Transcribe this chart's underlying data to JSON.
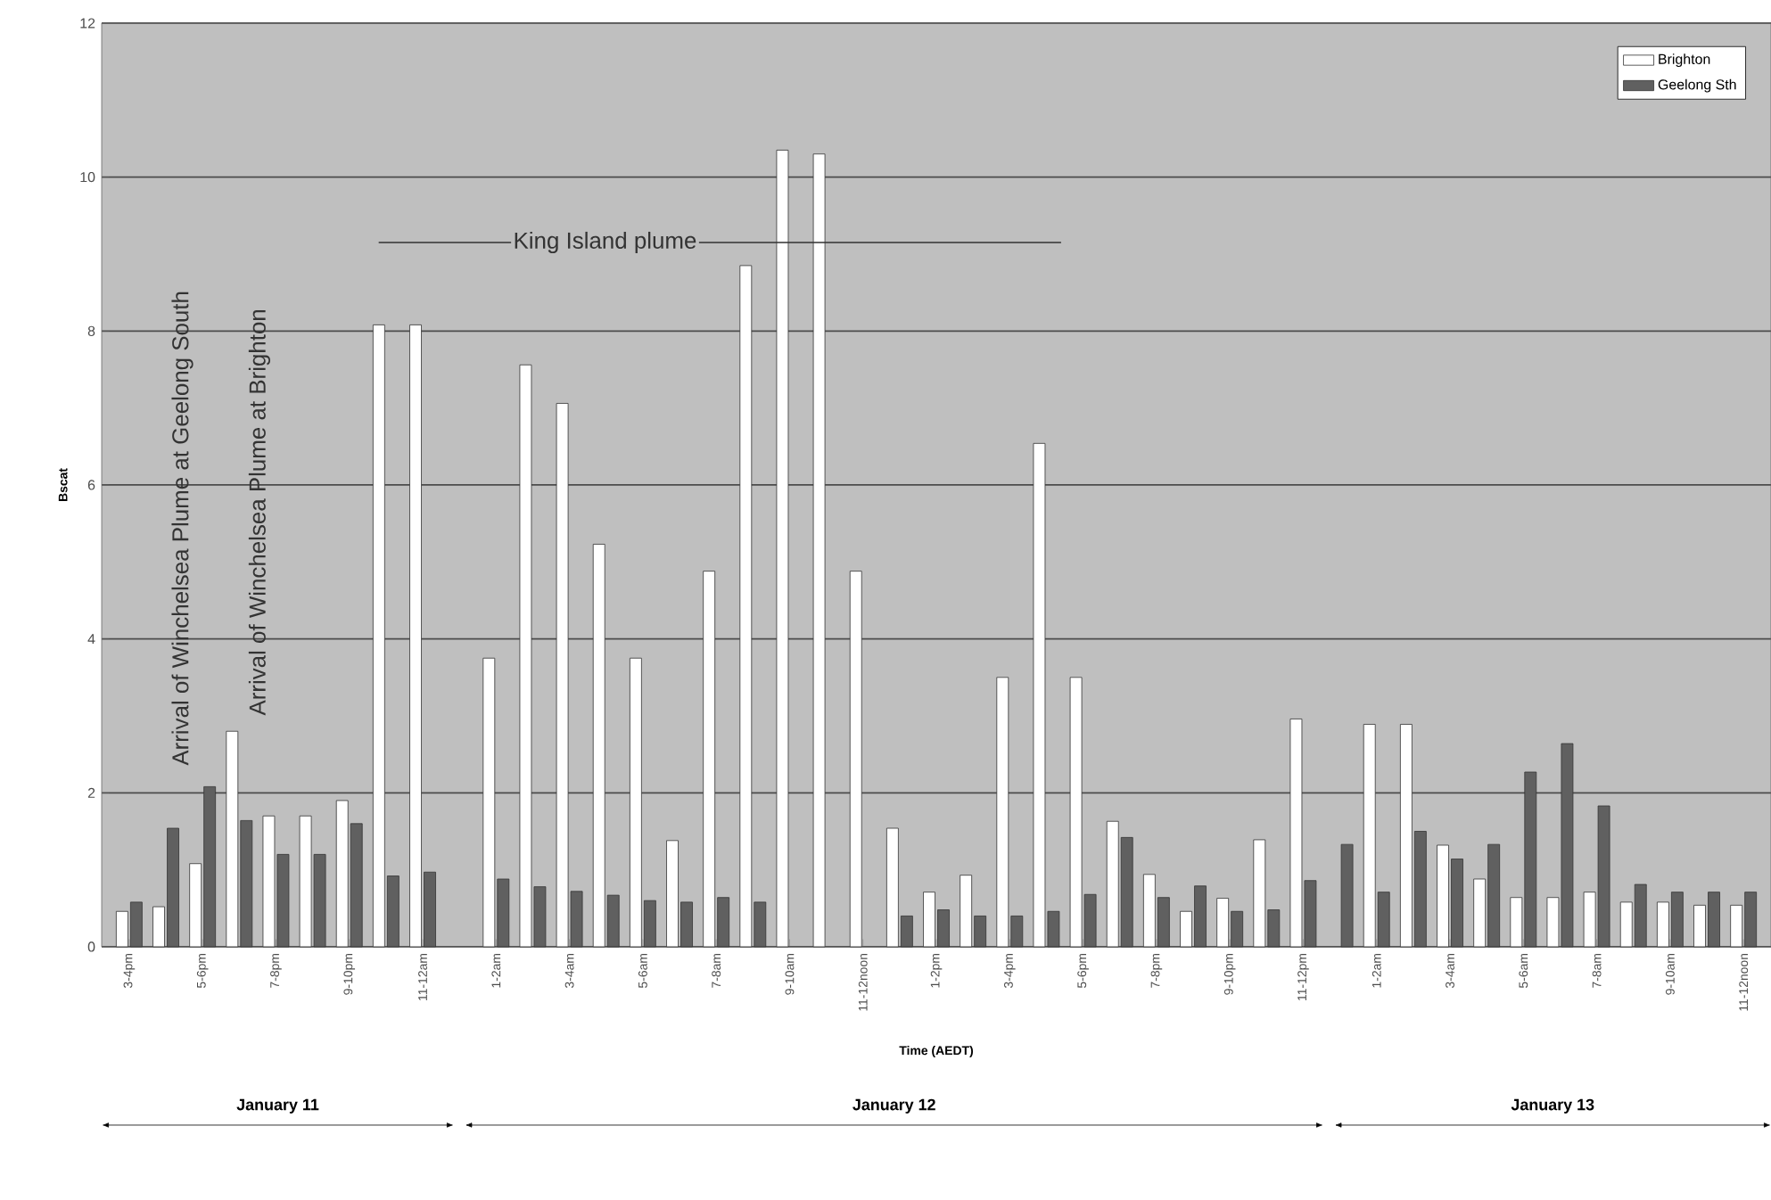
{
  "chart_data": {
    "type": "bar",
    "xlabel": "Time (AEDT)",
    "ylabel": "Bscat",
    "categories": [
      "3-4pm",
      null,
      "5-6pm",
      null,
      "7-8pm",
      null,
      "9-10pm",
      null,
      "11-12am",
      null,
      "1-2am",
      null,
      "3-4am",
      null,
      "5-6am",
      null,
      "7-8am",
      null,
      "9-10am",
      null,
      "11-12noon",
      null,
      "1-2pm",
      null,
      "3-4pm",
      null,
      "5-6pm",
      null,
      "7-8pm",
      null,
      "9-10pm",
      null,
      "11-12pm",
      null,
      "1-2am",
      null,
      "3-4am",
      null,
      "5-6am",
      null,
      "7-8am",
      null,
      "9-10am",
      null,
      "11-12noon"
    ],
    "series": [
      {
        "name": "Brighton",
        "color": "#ffffff",
        "values": [
          0.46,
          0.52,
          1.08,
          2.8,
          1.7,
          1.7,
          1.9,
          8.08,
          8.08,
          null,
          3.75,
          7.56,
          7.06,
          5.23,
          3.75,
          1.38,
          4.88,
          8.85,
          10.35,
          10.3,
          4.88,
          1.54,
          0.71,
          0.93,
          3.5,
          6.54,
          3.5,
          1.63,
          0.94,
          0.46,
          0.63,
          1.39,
          2.96,
          null,
          2.89,
          2.89,
          1.32,
          0.88,
          0.64,
          0.64,
          0.71,
          0.58,
          0.58,
          0.54,
          0.54
        ]
      },
      {
        "name": "Geelong Sth",
        "color": "#606060",
        "values": [
          0.58,
          1.54,
          2.08,
          1.64,
          1.2,
          1.2,
          1.6,
          0.92,
          0.97,
          null,
          0.88,
          0.78,
          0.72,
          0.67,
          0.6,
          0.58,
          0.64,
          0.58,
          null,
          null,
          null,
          0.4,
          0.48,
          0.4,
          0.4,
          0.46,
          0.68,
          1.42,
          0.64,
          0.79,
          0.46,
          0.48,
          0.86,
          1.33,
          0.71,
          1.5,
          1.14,
          1.33,
          2.27,
          2.64,
          1.83,
          0.81,
          0.71,
          0.71,
          0.71
        ]
      }
    ],
    "ylim": [
      0,
      12
    ],
    "yticks": [
      0,
      2,
      4,
      6,
      8,
      10,
      12
    ],
    "grid": "y",
    "legend": "top right",
    "annotations": [
      "Arrival of Winchelsea Plume at Geelong South",
      "Arrival of Winchelsea Plume at Brighton",
      "King Island plume",
      "January 11",
      "January 12",
      "January 13"
    ]
  }
}
